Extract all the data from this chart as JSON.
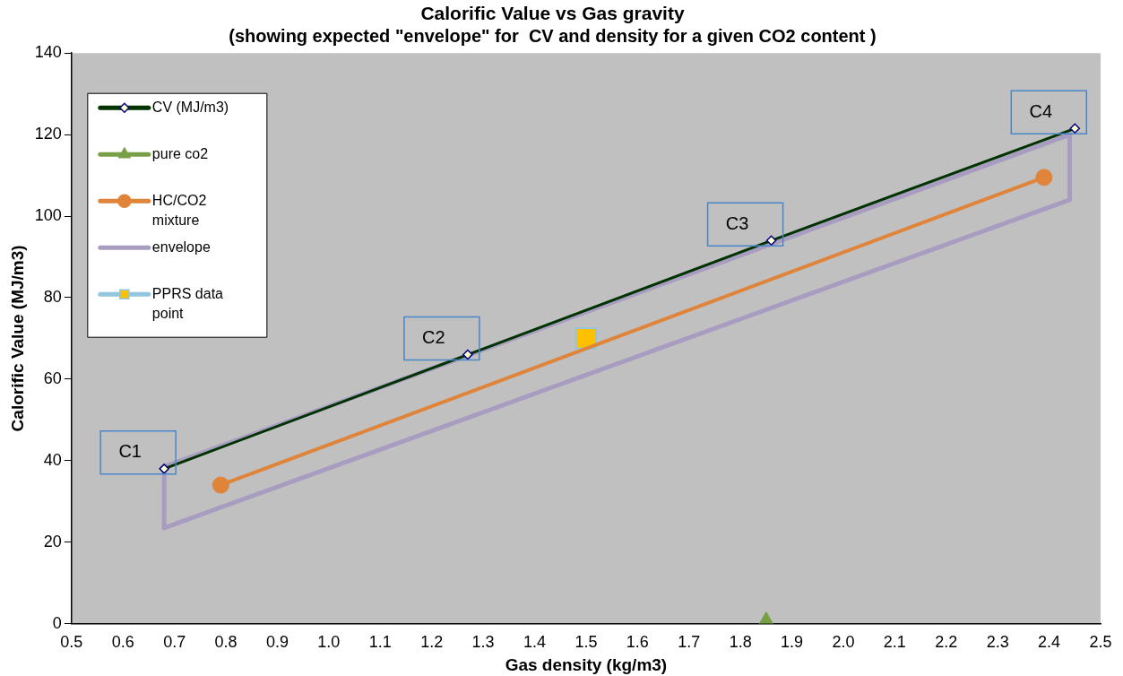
{
  "chart_data": {
    "type": "line",
    "title": "Calorific Value vs Gas gravity",
    "subtitle": "(showing expected \"envelope\" for  CV and density for a given CO2 content )",
    "xlabel": "Gas density (kg/m3)",
    "ylabel": "Calorific Value (MJ/m3)",
    "xlim": [
      0.5,
      2.5
    ],
    "xticks": [
      {
        "value": 0.5,
        "label": "0.5"
      },
      {
        "value": 0.6,
        "label": "0.6"
      },
      {
        "value": 0.7,
        "label": "0.7"
      },
      {
        "value": 0.8,
        "label": "0.8"
      },
      {
        "value": 0.9,
        "label": "0.9"
      },
      {
        "value": 1.0,
        "label": "1.0"
      },
      {
        "value": 1.1,
        "label": "1.1"
      },
      {
        "value": 1.2,
        "label": "1.2"
      },
      {
        "value": 1.3,
        "label": "1.3"
      },
      {
        "value": 1.4,
        "label": "1.4"
      },
      {
        "value": 1.5,
        "label": "1.5"
      },
      {
        "value": 1.6,
        "label": "1.6"
      },
      {
        "value": 1.7,
        "label": "1.7"
      },
      {
        "value": 1.8,
        "label": "1.8"
      },
      {
        "value": 1.9,
        "label": "1.9"
      },
      {
        "value": 2.0,
        "label": "2.0"
      },
      {
        "value": 2.1,
        "label": "2.1"
      },
      {
        "value": 2.2,
        "label": "2.2"
      },
      {
        "value": 2.3,
        "label": "2.3"
      },
      {
        "value": 2.4,
        "label": "2.4"
      },
      {
        "value": 2.5,
        "label": "2.5"
      }
    ],
    "ylim": [
      0,
      140
    ],
    "yticks": [
      0,
      20,
      40,
      60,
      80,
      100,
      120,
      140
    ],
    "grid": false,
    "legend": "top left",
    "series": [
      {
        "name": "CV (MJ/m3)",
        "type": "line",
        "marker": "diamond",
        "color": "#003300",
        "x": [
          0.68,
          1.27,
          1.86,
          2.45
        ],
        "values": [
          38,
          66,
          94,
          121.5
        ]
      },
      {
        "name": "pure co2",
        "type": "scatter",
        "marker": "triangle",
        "color": "#77a046",
        "x": [
          1.85
        ],
        "values": [
          0
        ]
      },
      {
        "name": "HC/CO2 mixture",
        "type": "line",
        "marker": "circle",
        "color": "#e0843a",
        "x": [
          0.79,
          2.39
        ],
        "values": [
          34,
          109.5
        ]
      },
      {
        "name": "envelope",
        "type": "line",
        "marker": "none",
        "color": "#a89cc0",
        "x": [
          0.68,
          2.44
        ],
        "values": [
          38.5,
          120
        ]
      },
      {
        "type": "line",
        "marker": "none",
        "color": "#a89cc0",
        "x": [
          0.68,
          2.44
        ],
        "values": [
          23.5,
          104
        ]
      },
      {
        "type": "line",
        "marker": "none",
        "color": "#a89cc0",
        "x": [
          0.68,
          0.68
        ],
        "values": [
          23.5,
          38.5
        ]
      },
      {
        "type": "line",
        "marker": "none",
        "color": "#a89cc0",
        "x": [
          2.44,
          2.44
        ],
        "values": [
          104,
          120
        ]
      },
      {
        "name": "PPRS data point",
        "type": "scatter",
        "marker": "square",
        "color": "#ffc000",
        "x": [
          1.5
        ],
        "values": [
          70
        ]
      }
    ],
    "annotations": [
      {
        "text": "C1",
        "x": 0.68,
        "y": 38
      },
      {
        "text": "C2",
        "x": 1.27,
        "y": 66
      },
      {
        "text": "C3",
        "x": 1.86,
        "y": 94
      },
      {
        "text": "C4",
        "x": 2.45,
        "y": 121.5
      }
    ]
  }
}
